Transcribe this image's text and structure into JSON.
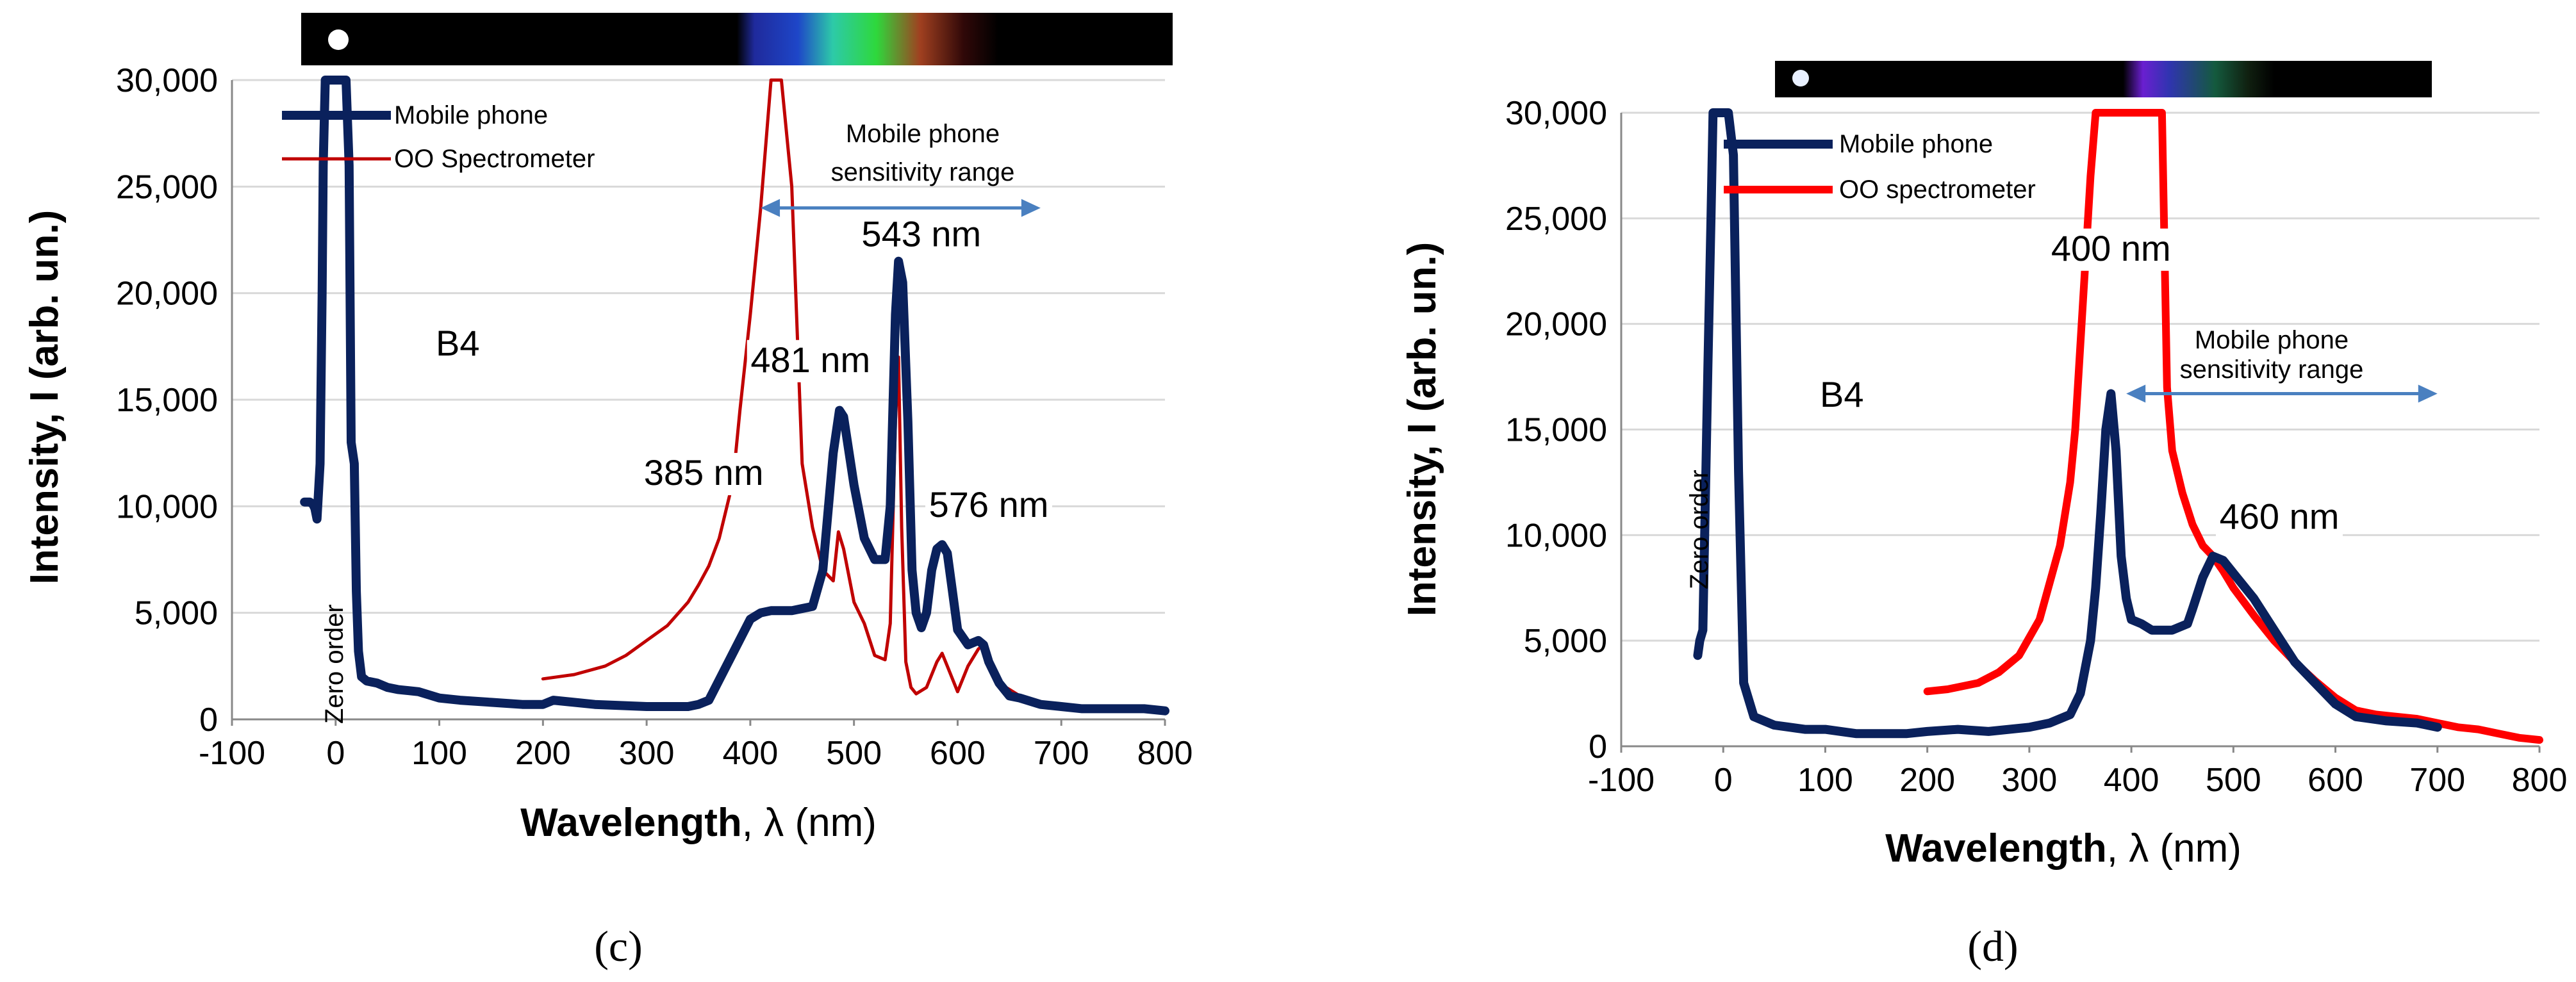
{
  "colors": {
    "mobile": "#0a215c",
    "oo_c": "#c00000",
    "oo_d": "#ff0000",
    "arrow": "#4a80c0",
    "grid": "#d9d9d9"
  },
  "chart_data": [
    {
      "id": "c",
      "type": "line",
      "panel_label": "(c)",
      "label_B4": "B4",
      "xlabel": "Wavelength",
      "xlabel_sep": ", ",
      "xlabel_symbol": "λ",
      "xlabel_unit": " (nm)",
      "ylabel": "Intensity, I (arb. un.)",
      "xlim": [
        -100,
        800
      ],
      "ylim": [
        0,
        30000
      ],
      "xticks": [
        -100,
        0,
        100,
        200,
        300,
        400,
        500,
        600,
        700,
        800
      ],
      "xtick_labels": [
        "-100",
        "0",
        "100",
        "200",
        "300",
        "400",
        "500",
        "600",
        "700",
        "800"
      ],
      "yticks": [
        0,
        5000,
        10000,
        15000,
        20000,
        25000,
        30000
      ],
      "ytick_labels": [
        "0",
        "5,000",
        "10,000",
        "15,000",
        "20,000",
        "25,000",
        "30,000"
      ],
      "legend": [
        "Mobile phone",
        "OO Spectrometer"
      ],
      "zero_order": "Zero order",
      "sensitivity_label": [
        "Mobile phone",
        "sensitivity range"
      ],
      "sensitivity_range": [
        410,
        680
      ],
      "sensitivity_y": 24000,
      "peak_labels": [
        {
          "text": "543 nm",
          "x": 565,
          "y": 22200
        },
        {
          "text": "481 nm",
          "x": 458,
          "y": 16300
        },
        {
          "text": "385 nm",
          "x": 355,
          "y": 11000
        },
        {
          "text": "576 nm",
          "x": 630,
          "y": 9500
        }
      ],
      "series": [
        {
          "name": "Mobile phone",
          "x": [
            -30,
            -25,
            -22,
            -20,
            -18,
            -15,
            -13,
            -12,
            -10,
            -8,
            -5,
            0,
            5,
            10,
            13,
            15,
            18,
            20,
            22,
            25,
            30,
            40,
            50,
            60,
            80,
            100,
            120,
            150,
            180,
            200,
            210,
            250,
            300,
            340,
            350,
            360,
            380,
            400,
            410,
            420,
            430,
            440,
            450,
            460,
            470,
            480,
            486,
            490,
            500,
            510,
            520,
            530,
            535,
            540,
            543,
            547,
            552,
            556,
            560,
            565,
            570,
            575,
            580,
            585,
            590,
            595,
            600,
            610,
            620,
            625,
            630,
            640,
            650,
            660,
            680,
            700,
            720,
            750,
            780,
            800
          ],
          "y": [
            10200,
            10200,
            10100,
            9900,
            9400,
            12000,
            20000,
            26000,
            30000,
            30000,
            30000,
            30000,
            30000,
            30000,
            26000,
            13000,
            12000,
            6000,
            3200,
            2000,
            1800,
            1700,
            1500,
            1400,
            1300,
            1000,
            900,
            800,
            700,
            700,
            900,
            700,
            600,
            600,
            700,
            900,
            2800,
            4700,
            5000,
            5100,
            5100,
            5100,
            5200,
            5300,
            7000,
            12500,
            14500,
            14200,
            11000,
            8500,
            7500,
            7500,
            10000,
            19000,
            21500,
            20500,
            14000,
            7000,
            5000,
            4300,
            5000,
            7000,
            8000,
            8200,
            7800,
            6000,
            4200,
            3500,
            3700,
            3500,
            2700,
            1700,
            1100,
            1000,
            700,
            600,
            500,
            500,
            500,
            400
          ]
        },
        {
          "name": "OO Spectrometer",
          "x": [
            200,
            230,
            260,
            280,
            300,
            320,
            340,
            350,
            360,
            370,
            380,
            385,
            390,
            400,
            410,
            420,
            430,
            440,
            450,
            460,
            470,
            480,
            485,
            490,
            500,
            510,
            520,
            530,
            535,
            540,
            543,
            546,
            550,
            555,
            560,
            570,
            580,
            585,
            590,
            600,
            610,
            620,
            625,
            630,
            640,
            660,
            680,
            700,
            720,
            750
          ],
          "y": [
            1900,
            2100,
            2500,
            3000,
            3700,
            4400,
            5500,
            6300,
            7200,
            8500,
            10500,
            12000,
            14500,
            19000,
            24000,
            30000,
            30000,
            25000,
            12000,
            9000,
            7000,
            6500,
            8800,
            8000,
            5500,
            4500,
            3000,
            2800,
            4500,
            14000,
            17000,
            9000,
            2700,
            1500,
            1200,
            1500,
            2700,
            3100,
            2500,
            1300,
            2500,
            3300,
            3500,
            2400,
            1700,
            1100,
            800,
            600,
            400,
            400
          ]
        }
      ]
    },
    {
      "id": "d",
      "type": "line",
      "panel_label": "(d)",
      "label_B4": "B4",
      "xlabel": "Wavelength",
      "xlabel_sep": ", ",
      "xlabel_symbol": "λ",
      "xlabel_unit": " (nm)",
      "ylabel": "Intensity, I (arb. un.)",
      "xlim": [
        -100,
        800
      ],
      "ylim": [
        0,
        30000
      ],
      "xticks": [
        -100,
        0,
        100,
        200,
        300,
        400,
        500,
        600,
        700,
        800
      ],
      "xtick_labels": [
        "-100",
        "0",
        "100",
        "200",
        "300",
        "400",
        "500",
        "600",
        "700",
        "800"
      ],
      "yticks": [
        0,
        5000,
        10000,
        15000,
        20000,
        25000,
        30000
      ],
      "ytick_labels": [
        "0",
        "5,000",
        "10,000",
        "15,000",
        "20,000",
        "25,000",
        "30,000"
      ],
      "legend": [
        "Mobile phone",
        "OO spectrometer"
      ],
      "zero_order": "Zero order",
      "sensitivity_label": [
        "Mobile phone",
        "sensitivity range"
      ],
      "sensitivity_range": [
        395,
        700
      ],
      "sensitivity_y": 16700,
      "peak_labels": [
        {
          "text": "400 nm",
          "x": 380,
          "y": 23000
        },
        {
          "text": "460 nm",
          "x": 545,
          "y": 10300
        }
      ],
      "series": [
        {
          "name": "Mobile phone",
          "x": [
            -25,
            -23,
            -20,
            -15,
            -12,
            -10,
            -8,
            -5,
            0,
            5,
            10,
            15,
            20,
            30,
            50,
            80,
            100,
            130,
            150,
            180,
            200,
            230,
            260,
            300,
            320,
            340,
            350,
            360,
            365,
            370,
            375,
            380,
            385,
            390,
            395,
            400,
            410,
            420,
            440,
            455,
            460,
            470,
            480,
            490,
            500,
            520,
            540,
            560,
            580,
            600,
            620,
            650,
            680,
            700
          ],
          "y": [
            4300,
            5000,
            5500,
            18000,
            25000,
            30000,
            30000,
            30000,
            30000,
            30000,
            28000,
            13000,
            3000,
            1400,
            1000,
            800,
            800,
            600,
            600,
            600,
            700,
            800,
            700,
            900,
            1100,
            1500,
            2500,
            5000,
            7500,
            11000,
            15000,
            16700,
            14000,
            9000,
            7000,
            6000,
            5800,
            5500,
            5500,
            5800,
            6500,
            8000,
            9000,
            8800,
            8200,
            7000,
            5500,
            4000,
            3000,
            2000,
            1400,
            1200,
            1100,
            900
          ]
        },
        {
          "name": "OO spectrometer",
          "x": [
            200,
            220,
            250,
            270,
            290,
            310,
            330,
            340,
            345,
            350,
            355,
            360,
            365,
            370,
            380,
            400,
            420,
            430,
            435,
            440,
            450,
            460,
            470,
            480,
            490,
            500,
            520,
            540,
            560,
            580,
            600,
            620,
            640,
            660,
            680,
            700,
            720,
            740,
            760,
            780,
            800
          ],
          "y": [
            2600,
            2700,
            3000,
            3500,
            4300,
            6000,
            9500,
            12500,
            15000,
            19000,
            23000,
            27000,
            30000,
            30000,
            30000,
            30000,
            30000,
            30000,
            17000,
            14000,
            12000,
            10500,
            9500,
            9000,
            8300,
            7500,
            6200,
            5000,
            4000,
            3100,
            2300,
            1700,
            1500,
            1400,
            1300,
            1100,
            900,
            800,
            600,
            400,
            300
          ]
        }
      ]
    }
  ]
}
